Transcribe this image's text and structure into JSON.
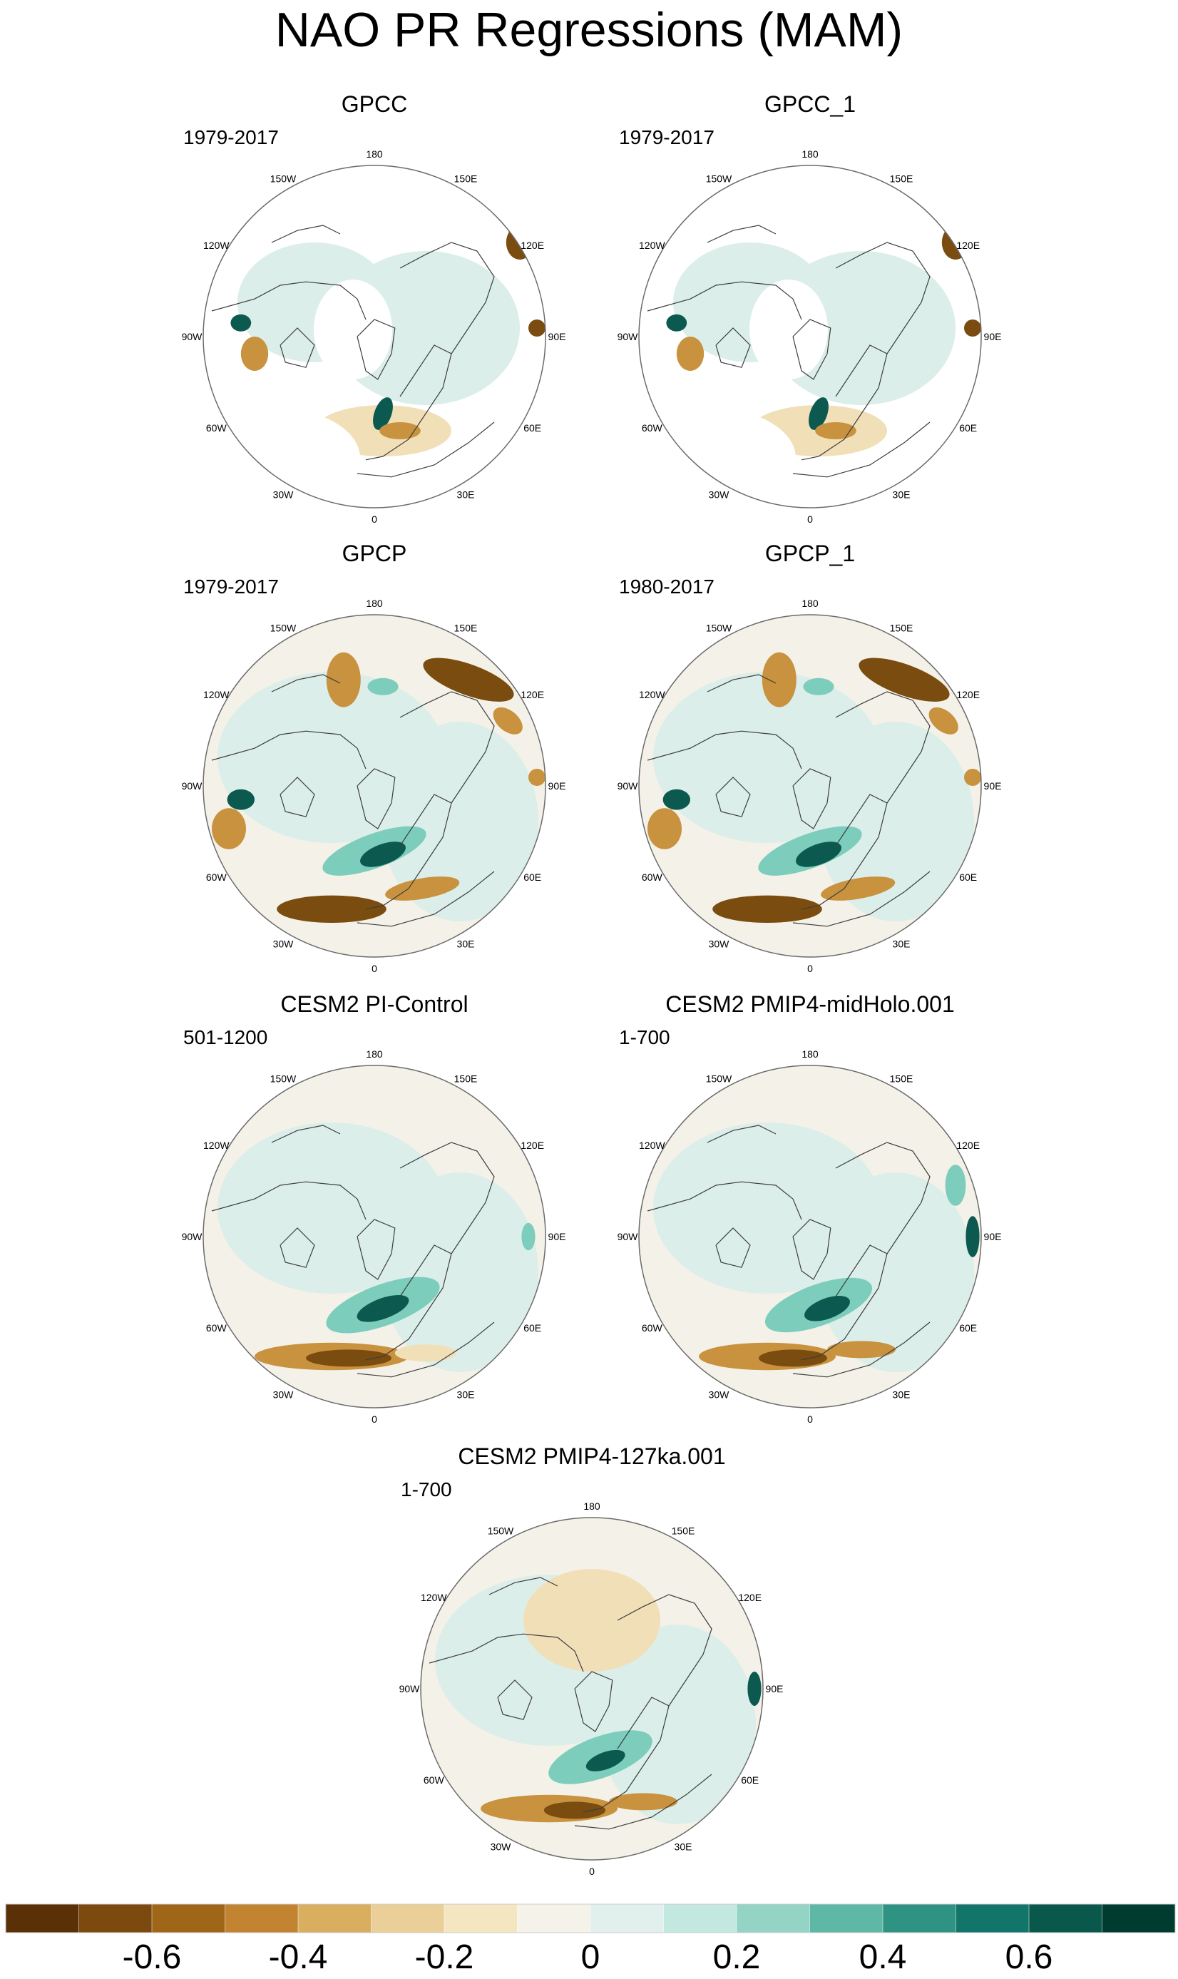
{
  "title": "NAO PR Regressions (MAM)",
  "palette": {
    "neg_strong": "#7a4c10",
    "neg_mid": "#c8923f",
    "neg_weak": "#f1dfb8",
    "neutral": "#f4f1e8",
    "pos_weak": "#dceeea",
    "pos_mid": "#7dcdbd",
    "pos_strong": "#0c5a4f",
    "coast": "#3d3d3d",
    "outline": "#6b6b6b"
  },
  "longitude_labels": [
    "180",
    "150E",
    "120E",
    "90E",
    "60E",
    "30E",
    "0",
    "30W",
    "60W",
    "90W",
    "120W",
    "150W"
  ],
  "panels": [
    {
      "title": "GPCC",
      "period": "1979-2017",
      "coverage": "land"
    },
    {
      "title": "GPCC_1",
      "period": "1979-2017",
      "coverage": "land"
    },
    {
      "title": "GPCP",
      "period": "1979-2017",
      "coverage": "full"
    },
    {
      "title": "GPCP_1",
      "period": "1980-2017",
      "coverage": "full"
    },
    {
      "title": "CESM2 PI-Control",
      "period": "501-1200",
      "coverage": "full"
    },
    {
      "title": "CESM2 PMIP4-midHolo.001",
      "period": "1-700",
      "coverage": "full"
    },
    {
      "title": "CESM2 PMIP4-127ka.001",
      "period": "1-700",
      "coverage": "full"
    }
  ],
  "colorbar": {
    "colors": [
      "#5a3006",
      "#7c4a0f",
      "#a06618",
      "#c28431",
      "#d9ae5f",
      "#ead098",
      "#f4e6c0",
      "#f5f2ea",
      "#e1f0ed",
      "#c3e8df",
      "#93d4c5",
      "#5fb7a6",
      "#2f9384",
      "#11756a",
      "#0a574c",
      "#003b30"
    ],
    "tick_labels": [
      "-0.6",
      "-0.4",
      "-0.2",
      "0",
      "0.2",
      "0.4",
      "0.6"
    ]
  }
}
